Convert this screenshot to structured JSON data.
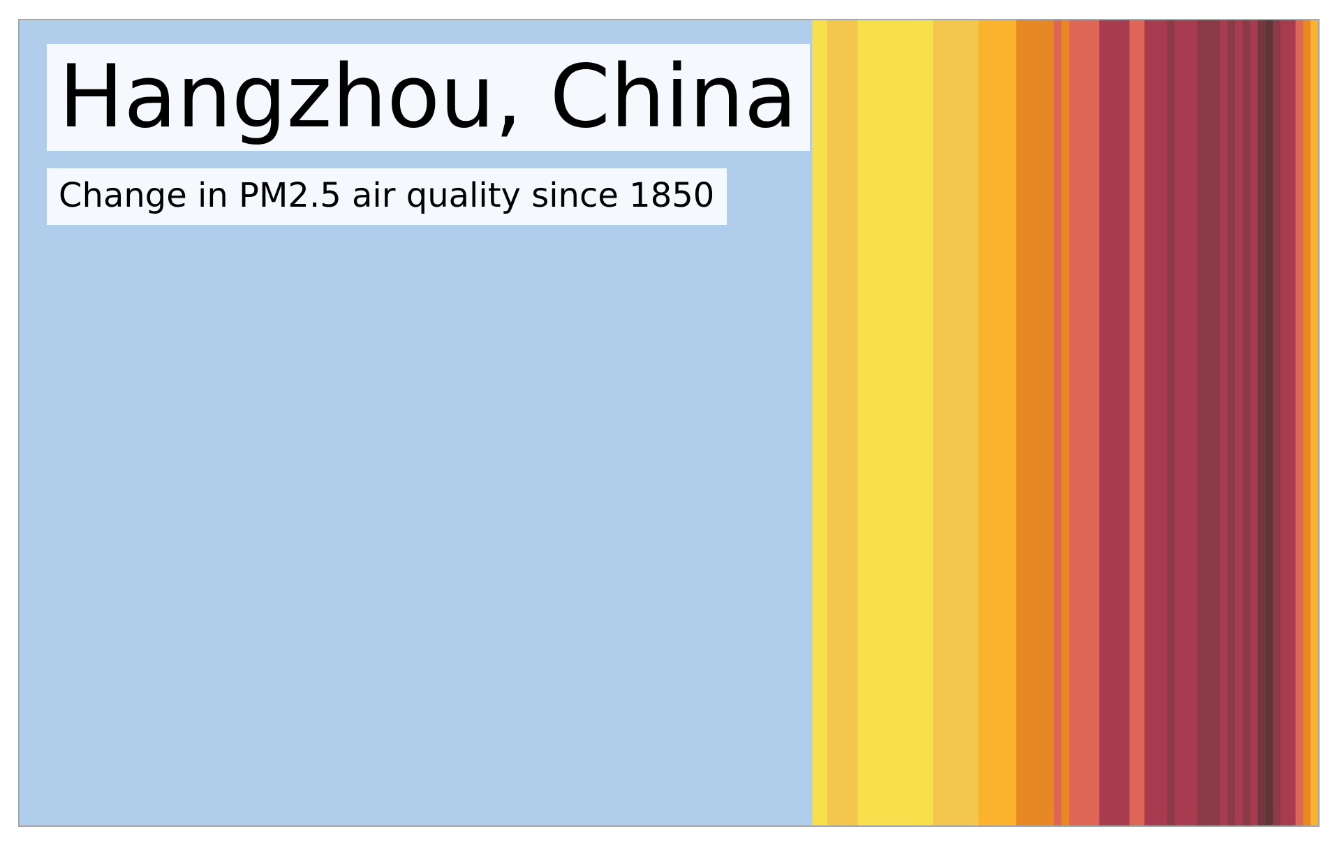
{
  "title": "Hangzhou, China",
  "subtitle": "Change in PM2.5 air quality since 1850",
  "chart_data": {
    "type": "stripes",
    "title": "Hangzhou, China",
    "subtitle": "Change in PM2.5 air quality since 1850",
    "xlim": [
      1850,
      2022
    ],
    "stripes": [
      {
        "start": 1850,
        "end": 1955,
        "color": "#b0ceec"
      },
      {
        "start": 1955,
        "end": 1957,
        "color": "#f8e04c"
      },
      {
        "start": 1957,
        "end": 1961,
        "color": "#f3c74d"
      },
      {
        "start": 1961,
        "end": 1971,
        "color": "#f8e04c"
      },
      {
        "start": 1971,
        "end": 1977,
        "color": "#f3c74d"
      },
      {
        "start": 1977,
        "end": 1982,
        "color": "#fbb22d"
      },
      {
        "start": 1982,
        "end": 1987,
        "color": "#e78824"
      },
      {
        "start": 1987,
        "end": 1988,
        "color": "#dd6656"
      },
      {
        "start": 1988,
        "end": 1989,
        "color": "#e78824"
      },
      {
        "start": 1989,
        "end": 1993,
        "color": "#dd6656"
      },
      {
        "start": 1993,
        "end": 1997,
        "color": "#a73b4f"
      },
      {
        "start": 1997,
        "end": 1999,
        "color": "#dd6656"
      },
      {
        "start": 1999,
        "end": 2002,
        "color": "#a73b4f"
      },
      {
        "start": 2002,
        "end": 2003,
        "color": "#8b3a48"
      },
      {
        "start": 2003,
        "end": 2006,
        "color": "#a73b4f"
      },
      {
        "start": 2006,
        "end": 2009,
        "color": "#8b3a48"
      },
      {
        "start": 2009,
        "end": 2010,
        "color": "#a73b4f"
      },
      {
        "start": 2010,
        "end": 2011,
        "color": "#8b3a48"
      },
      {
        "start": 2011,
        "end": 2012,
        "color": "#a73b4f"
      },
      {
        "start": 2012,
        "end": 2013,
        "color": "#8b3a48"
      },
      {
        "start": 2013,
        "end": 2014,
        "color": "#a73b4f"
      },
      {
        "start": 2014,
        "end": 2015,
        "color": "#743640"
      },
      {
        "start": 2015,
        "end": 2016,
        "color": "#5e3637"
      },
      {
        "start": 2016,
        "end": 2017,
        "color": "#8b3a48"
      },
      {
        "start": 2017,
        "end": 2019,
        "color": "#a73b4f"
      },
      {
        "start": 2019,
        "end": 2020,
        "color": "#dd6656"
      },
      {
        "start": 2020,
        "end": 2021,
        "color": "#e78824"
      },
      {
        "start": 2021,
        "end": 2022,
        "color": "#fbb22d"
      }
    ]
  }
}
